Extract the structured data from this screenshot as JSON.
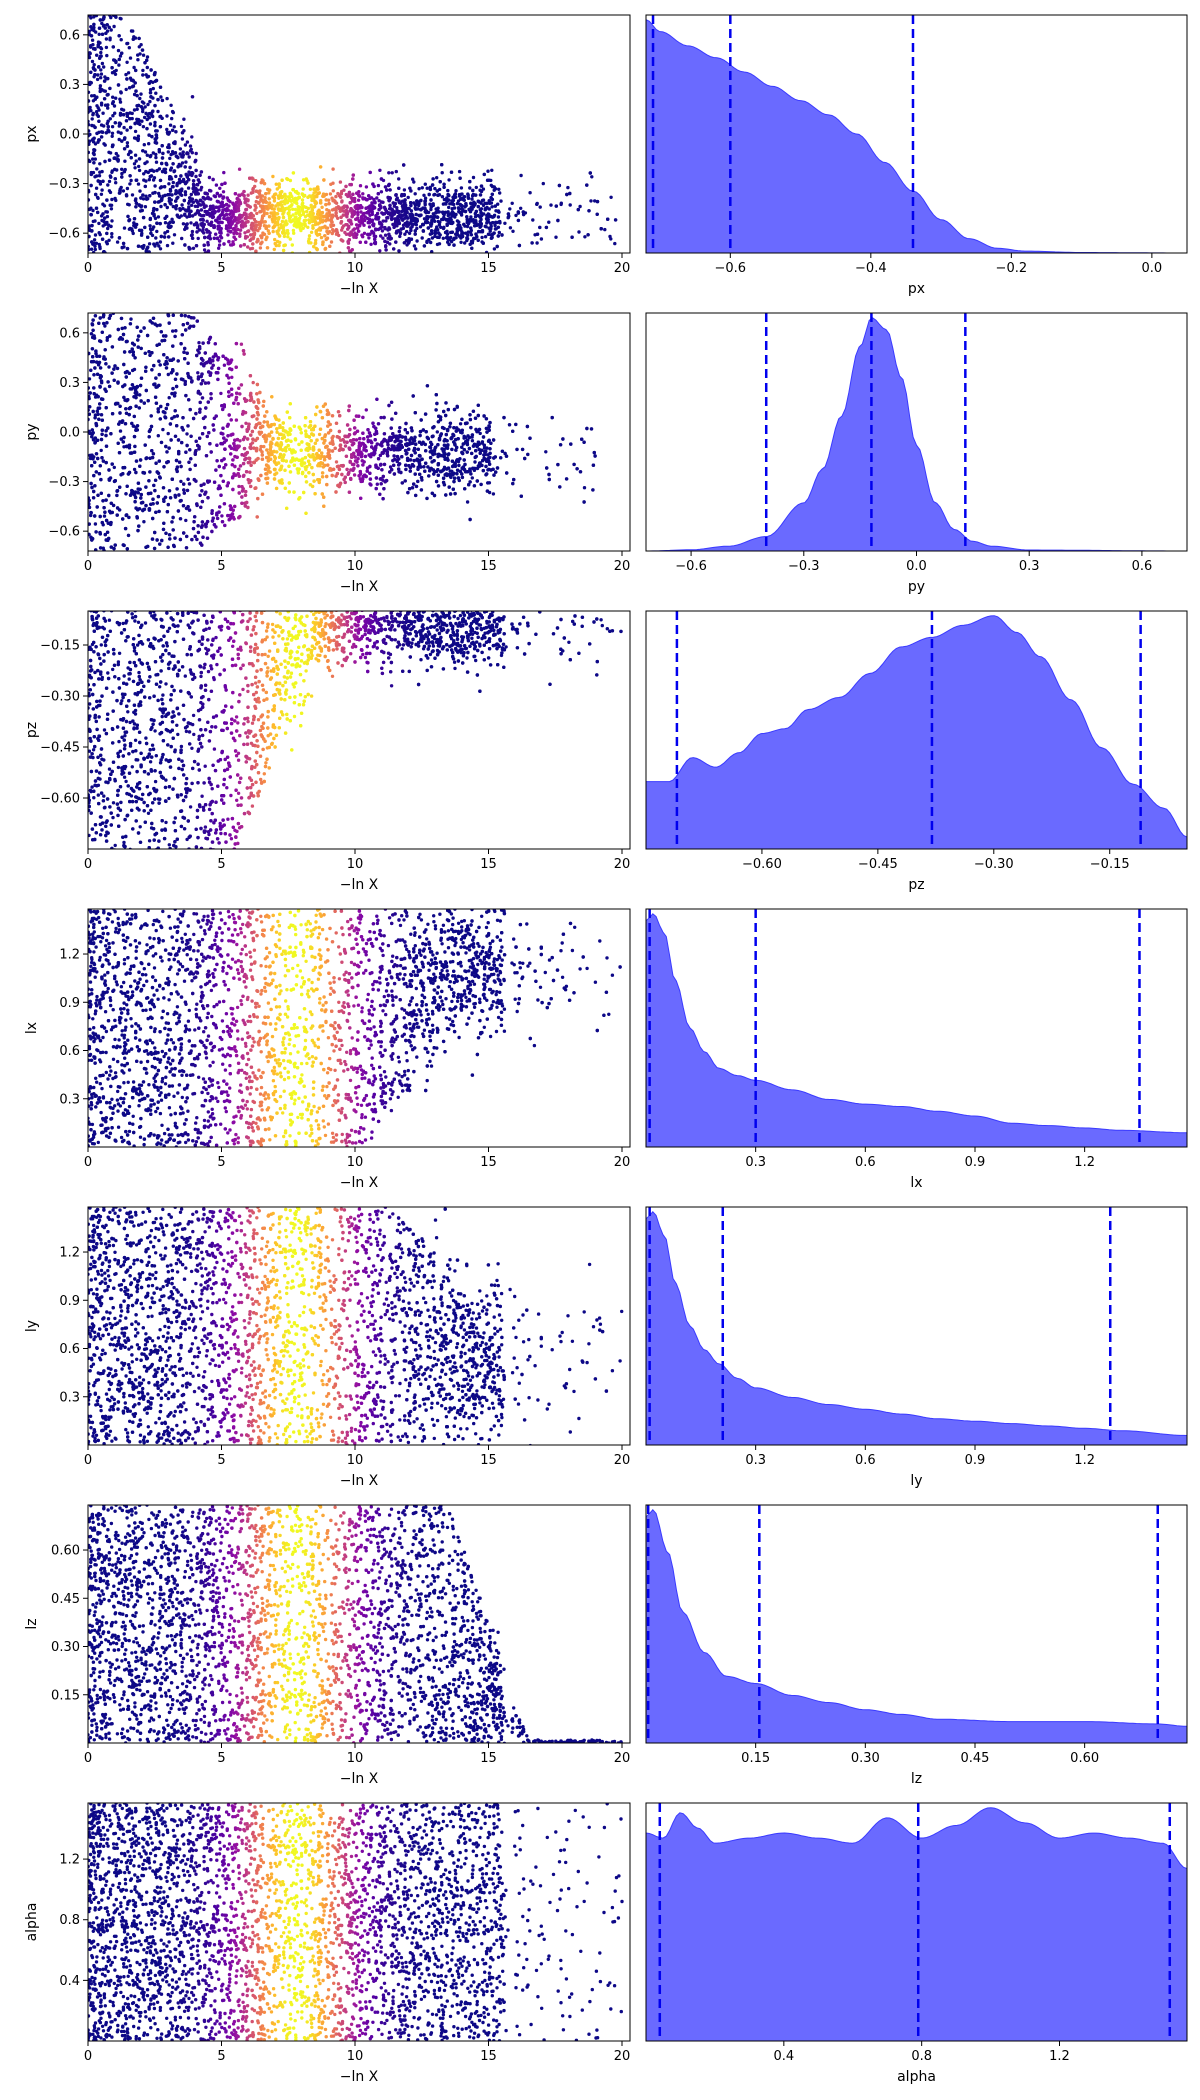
{
  "figure": {
    "x_trace_label": "−ln X",
    "panels_description": "trace (left) and marginal posterior (right) per parameter"
  },
  "chart_data": [
    {
      "type": "scatter",
      "name": "px trace",
      "xlabel": "−ln X",
      "ylabel": "px",
      "xlim": [
        0,
        20.3
      ],
      "ylim": [
        -0.72,
        0.72
      ],
      "xticks": [
        0,
        5,
        10,
        15,
        20
      ],
      "yticks": [
        0.6,
        0.3,
        0.0,
        -0.3,
        -0.6
      ],
      "ytick_labels": [
        "0.6",
        "0.3",
        "0.0",
        "−0.3",
        "−0.6"
      ],
      "profile": {
        "early_center": 0,
        "early_spread": 0.72,
        "collapse_x": 3,
        "late_center": -0.5,
        "late_spread": 0.2,
        "max_x": 19.8
      }
    },
    {
      "type": "area",
      "name": "px marginal",
      "xlabel": "px",
      "xlim": [
        -0.72,
        0.05
      ],
      "xticks": [
        -0.6,
        -0.4,
        -0.2,
        0.0
      ],
      "xtick_labels": [
        "−0.6",
        "−0.4",
        "−0.2",
        "0.0"
      ],
      "x": [
        -0.72,
        -0.7,
        -0.66,
        -0.62,
        -0.58,
        -0.54,
        -0.5,
        -0.46,
        -0.42,
        -0.38,
        -0.34,
        -0.3,
        -0.26,
        -0.22,
        -0.18,
        -0.1,
        0.05
      ],
      "density": [
        0.98,
        0.93,
        0.87,
        0.82,
        0.76,
        0.7,
        0.64,
        0.58,
        0.5,
        0.38,
        0.26,
        0.14,
        0.06,
        0.02,
        0.008,
        0.002,
        0
      ],
      "quantiles": [
        -0.71,
        -0.6,
        -0.34
      ]
    },
    {
      "type": "scatter",
      "name": "py trace",
      "xlabel": "−ln X",
      "ylabel": "py",
      "xlim": [
        0,
        20.3
      ],
      "ylim": [
        -0.72,
        0.72
      ],
      "xticks": [
        0,
        5,
        10,
        15,
        20
      ],
      "yticks": [
        0.6,
        0.3,
        0.0,
        -0.3,
        -0.6
      ],
      "ytick_labels": [
        "0.6",
        "0.3",
        "0.0",
        "−0.3",
        "−0.6"
      ],
      "profile": {
        "early_center": 0,
        "early_spread": 0.72,
        "collapse_x": 5.5,
        "late_center": -0.12,
        "late_spread": 0.22,
        "max_x": 19.5
      }
    },
    {
      "type": "area",
      "name": "py marginal",
      "xlabel": "py",
      "xlim": [
        -0.72,
        0.72
      ],
      "xticks": [
        -0.6,
        -0.3,
        0.0,
        0.3,
        0.6
      ],
      "xtick_labels": [
        "−0.6",
        "−0.3",
        "0.0",
        "0.3",
        "0.6"
      ],
      "x": [
        -0.72,
        -0.6,
        -0.5,
        -0.4,
        -0.3,
        -0.25,
        -0.2,
        -0.15,
        -0.12,
        -0.08,
        -0.04,
        0.0,
        0.05,
        0.1,
        0.15,
        0.2,
        0.3,
        0.72
      ],
      "density": [
        0,
        0.005,
        0.02,
        0.06,
        0.2,
        0.34,
        0.56,
        0.85,
        0.97,
        0.92,
        0.72,
        0.44,
        0.2,
        0.09,
        0.04,
        0.02,
        0.004,
        0
      ],
      "quantiles": [
        -0.4,
        -0.12,
        0.13
      ]
    },
    {
      "type": "scatter",
      "name": "pz trace",
      "xlabel": "−ln X",
      "ylabel": "pz",
      "xlim": [
        0,
        20.3
      ],
      "ylim": [
        -0.75,
        -0.05
      ],
      "xticks": [
        0,
        5,
        10,
        15,
        20
      ],
      "yticks": [
        -0.15,
        -0.3,
        -0.45,
        -0.6
      ],
      "ytick_labels": [
        "−0.15",
        "−0.30",
        "−0.45",
        "−0.60"
      ],
      "profile": {
        "early_center": -0.4,
        "early_spread": 0.36,
        "collapse_x": 7,
        "late_center": -0.1,
        "late_spread": 0.1,
        "max_x": 20
      }
    },
    {
      "type": "area",
      "name": "pz marginal",
      "xlabel": "pz",
      "xlim": [
        -0.75,
        -0.05
      ],
      "xticks": [
        -0.6,
        -0.45,
        -0.3,
        -0.15
      ],
      "xtick_labels": [
        "−0.60",
        "−0.45",
        "−0.30",
        "−0.15"
      ],
      "x": [
        -0.75,
        -0.72,
        -0.69,
        -0.66,
        -0.63,
        -0.6,
        -0.57,
        -0.54,
        -0.5,
        -0.46,
        -0.42,
        -0.38,
        -0.34,
        -0.3,
        -0.27,
        -0.24,
        -0.2,
        -0.16,
        -0.12,
        -0.08,
        -0.05
      ],
      "density": [
        0.28,
        0.28,
        0.38,
        0.34,
        0.4,
        0.48,
        0.5,
        0.58,
        0.63,
        0.73,
        0.84,
        0.88,
        0.93,
        0.97,
        0.9,
        0.8,
        0.62,
        0.42,
        0.27,
        0.17,
        0.05
      ],
      "quantiles": [
        -0.71,
        -0.38,
        -0.11
      ]
    },
    {
      "type": "scatter",
      "name": "lx trace",
      "xlabel": "−ln X",
      "ylabel": "lx",
      "xlim": [
        0,
        20.3
      ],
      "ylim": [
        0.0,
        1.48
      ],
      "xticks": [
        0,
        5,
        10,
        15,
        20
      ],
      "yticks": [
        1.2,
        0.9,
        0.6,
        0.3
      ],
      "ytick_labels": [
        "1.2",
        "0.9",
        "0.6",
        "0.3"
      ],
      "profile": {
        "early_center": 0.74,
        "early_spread": 0.74,
        "collapse_x": 12,
        "late_center": 1.1,
        "late_spread": 0.38,
        "max_x": 20
      }
    },
    {
      "type": "area",
      "name": "lx marginal",
      "xlabel": "lx",
      "xlim": [
        0.0,
        1.48
      ],
      "xticks": [
        0.3,
        0.6,
        0.9,
        1.2
      ],
      "xtick_labels": [
        "0.3",
        "0.6",
        "0.9",
        "1.2"
      ],
      "x": [
        0.0,
        0.02,
        0.05,
        0.08,
        0.12,
        0.16,
        0.2,
        0.25,
        0.3,
        0.4,
        0.5,
        0.6,
        0.7,
        0.8,
        0.9,
        1.0,
        1.1,
        1.2,
        1.3,
        1.48
      ],
      "density": [
        0.95,
        0.98,
        0.9,
        0.7,
        0.5,
        0.4,
        0.33,
        0.3,
        0.28,
        0.24,
        0.2,
        0.18,
        0.17,
        0.15,
        0.13,
        0.1,
        0.09,
        0.08,
        0.07,
        0.06
      ],
      "quantiles": [
        0.01,
        0.3,
        1.35
      ]
    },
    {
      "type": "scatter",
      "name": "ly trace",
      "xlabel": "−ln X",
      "ylabel": "ly",
      "xlim": [
        0,
        20.3
      ],
      "ylim": [
        0.0,
        1.48
      ],
      "xticks": [
        0,
        5,
        10,
        15,
        20
      ],
      "yticks": [
        1.2,
        0.9,
        0.6,
        0.3
      ],
      "ytick_labels": [
        "1.2",
        "0.9",
        "0.6",
        "0.3"
      ],
      "profile": {
        "early_center": 0.74,
        "early_spread": 0.74,
        "collapse_x": 13,
        "late_center": 0.5,
        "late_spread": 0.45,
        "max_x": 20
      }
    },
    {
      "type": "area",
      "name": "ly marginal",
      "xlabel": "ly",
      "xlim": [
        0.0,
        1.48
      ],
      "xticks": [
        0.3,
        0.6,
        0.9,
        1.2
      ],
      "xtick_labels": [
        "0.3",
        "0.6",
        "0.9",
        "1.2"
      ],
      "x": [
        0.0,
        0.02,
        0.05,
        0.08,
        0.12,
        0.16,
        0.2,
        0.25,
        0.3,
        0.4,
        0.5,
        0.6,
        0.7,
        0.8,
        0.9,
        1.0,
        1.1,
        1.2,
        1.3,
        1.48
      ],
      "density": [
        0.95,
        0.98,
        0.88,
        0.68,
        0.5,
        0.4,
        0.34,
        0.28,
        0.24,
        0.2,
        0.17,
        0.15,
        0.13,
        0.11,
        0.1,
        0.09,
        0.08,
        0.07,
        0.06,
        0.04
      ],
      "quantiles": [
        0.01,
        0.21,
        1.27
      ]
    },
    {
      "type": "scatter",
      "name": "lz trace",
      "xlabel": "−ln X",
      "ylabel": "lz",
      "xlim": [
        0,
        20.3
      ],
      "ylim": [
        0.0,
        0.74
      ],
      "xticks": [
        0,
        5,
        10,
        15,
        20
      ],
      "yticks": [
        0.6,
        0.45,
        0.3,
        0.15
      ],
      "ytick_labels": [
        "0.60",
        "0.45",
        "0.30",
        "0.15"
      ],
      "profile": {
        "early_center": 0.37,
        "early_spread": 0.37,
        "collapse_x": 15,
        "late_center": 0.004,
        "late_spread": 0.006,
        "max_x": 20
      }
    },
    {
      "type": "area",
      "name": "lz marginal",
      "xlabel": "lz",
      "xlim": [
        0.0,
        0.74
      ],
      "xticks": [
        0.15,
        0.3,
        0.45,
        0.6
      ],
      "xtick_labels": [
        "0.15",
        "0.30",
        "0.45",
        "0.60"
      ],
      "x": [
        0.0,
        0.01,
        0.03,
        0.05,
        0.08,
        0.11,
        0.15,
        0.2,
        0.25,
        0.3,
        0.35,
        0.4,
        0.5,
        0.6,
        0.7,
        0.74
      ],
      "density": [
        0.95,
        0.98,
        0.8,
        0.55,
        0.38,
        0.28,
        0.25,
        0.2,
        0.17,
        0.14,
        0.12,
        0.1,
        0.09,
        0.09,
        0.08,
        0.07
      ],
      "quantiles": [
        0.003,
        0.155,
        0.7
      ]
    },
    {
      "type": "scatter",
      "name": "alpha trace",
      "xlabel": "−ln X",
      "ylabel": "alpha",
      "xlim": [
        0,
        20.3
      ],
      "ylim": [
        0.0,
        1.57
      ],
      "xticks": [
        0,
        5,
        10,
        15,
        20
      ],
      "yticks": [
        1.2,
        0.8,
        0.4
      ],
      "ytick_labels": [
        "1.2",
        "0.8",
        "0.4"
      ],
      "profile": {
        "early_center": 0.785,
        "early_spread": 0.785,
        "collapse_x": 20,
        "late_center": 0.785,
        "late_spread": 0.785,
        "max_x": 20
      }
    },
    {
      "type": "area",
      "name": "alpha marginal",
      "xlabel": "alpha",
      "xlim": [
        0.0,
        1.57
      ],
      "xticks": [
        0.4,
        0.8,
        1.2
      ],
      "xtick_labels": [
        "0.4",
        "0.8",
        "1.2"
      ],
      "x": [
        0.0,
        0.05,
        0.1,
        0.15,
        0.2,
        0.3,
        0.4,
        0.5,
        0.6,
        0.7,
        0.8,
        0.9,
        1.0,
        1.1,
        1.2,
        1.3,
        1.4,
        1.5,
        1.57
      ],
      "density": [
        0.82,
        0.8,
        0.9,
        0.84,
        0.78,
        0.8,
        0.82,
        0.8,
        0.78,
        0.88,
        0.8,
        0.85,
        0.92,
        0.86,
        0.8,
        0.82,
        0.8,
        0.78,
        0.68
      ],
      "quantiles": [
        0.04,
        0.79,
        1.52
      ]
    }
  ]
}
